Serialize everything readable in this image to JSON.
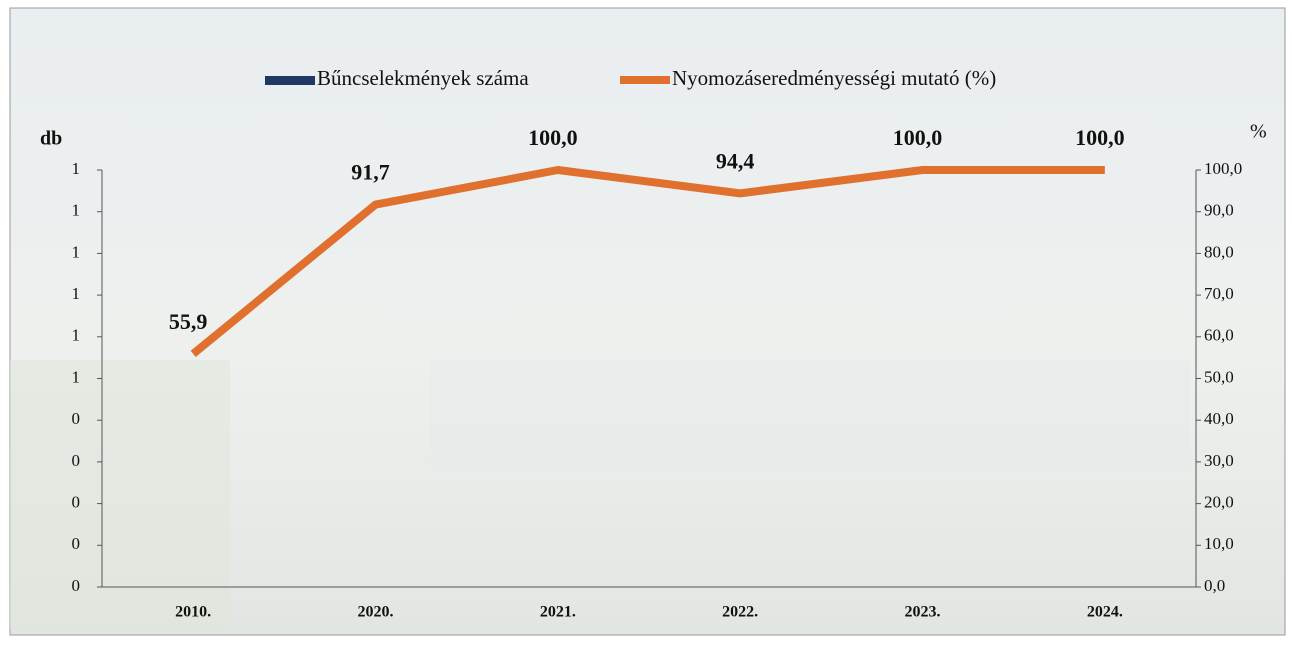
{
  "chart_data": {
    "type": "bar-line",
    "categories": [
      "2010.",
      "2020.",
      "2021.",
      "2022.",
      "2023.",
      "2024."
    ],
    "series": [
      {
        "name": "Bűncselekmények száma",
        "color": "#1f3864",
        "type": "bar",
        "values": [
          0,
          0,
          0,
          0,
          0,
          0
        ]
      },
      {
        "name": "Nyomozáseredményességi mutató (%)",
        "color": "#e0702e",
        "type": "line",
        "axis": "y2",
        "values": [
          55.9,
          91.7,
          100.0,
          94.4,
          100.0,
          100.0
        ],
        "value_labels": [
          "55,9",
          "91,7",
          "100,0",
          "94,4",
          "100,0",
          "100,0"
        ]
      }
    ],
    "ylabel": "db",
    "y2label": "%",
    "ylim": [
      0,
      1
    ],
    "yticks": [
      0,
      {
        "value": 0.1,
        "label": "0"
      },
      {
        "value": 0.2,
        "label": "0"
      },
      {
        "value": 0.3,
        "label": "0"
      },
      {
        "value": 0.4,
        "label": "0"
      },
      {
        "value": 0.5,
        "label": "1"
      },
      {
        "value": 0.6,
        "label": "1"
      },
      {
        "value": 0.7,
        "label": "1"
      },
      {
        "value": 0.8,
        "label": "1"
      },
      {
        "value": 0.9,
        "label": "1"
      },
      1
    ],
    "y2lim": [
      0,
      100
    ],
    "y2ticks": [
      {
        "value": 0,
        "label": "0,0"
      },
      {
        "value": 10,
        "label": "10,0"
      },
      {
        "value": 20,
        "label": "20,0"
      },
      {
        "value": 30,
        "label": "30,0"
      },
      {
        "value": 40,
        "label": "40,0"
      },
      {
        "value": 50,
        "label": "50,0"
      },
      {
        "value": 60,
        "label": "60,0"
      },
      {
        "value": 70,
        "label": "70,0"
      },
      {
        "value": 80,
        "label": "80,0"
      },
      {
        "value": 90,
        "label": "90,0"
      },
      {
        "value": 100,
        "label": "100,0"
      }
    ]
  }
}
